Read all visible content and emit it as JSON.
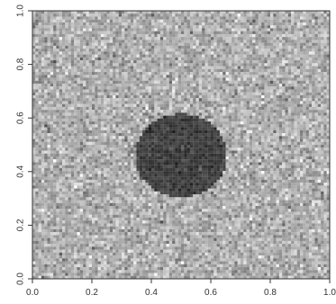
{
  "chart_data": {
    "type": "heatmap",
    "title": "",
    "xlabel": "",
    "ylabel": "",
    "xlim": [
      0.0,
      1.0
    ],
    "ylim": [
      0.0,
      1.0
    ],
    "x_ticks": [
      "0.0",
      "0.2",
      "0.4",
      "0.6",
      "0.8",
      "1.0"
    ],
    "y_ticks": [
      "0.0",
      "0.2",
      "0.4",
      "0.6",
      "0.8",
      "1.0"
    ],
    "grid": false,
    "legend": "none",
    "colormap": "grayscale",
    "image": {
      "description": "Noisy gray field with a dark circular disk near the center",
      "background_mean_gray": 0.68,
      "background_noise_std": 0.1,
      "disk_center": [
        0.5,
        0.46
      ],
      "disk_radius": 0.155,
      "disk_mean_gray": 0.25,
      "disk_noise_std": 0.05
    }
  },
  "colors": {
    "plot_border": "#333333",
    "axis": "#333333",
    "background": "#ffffff"
  }
}
